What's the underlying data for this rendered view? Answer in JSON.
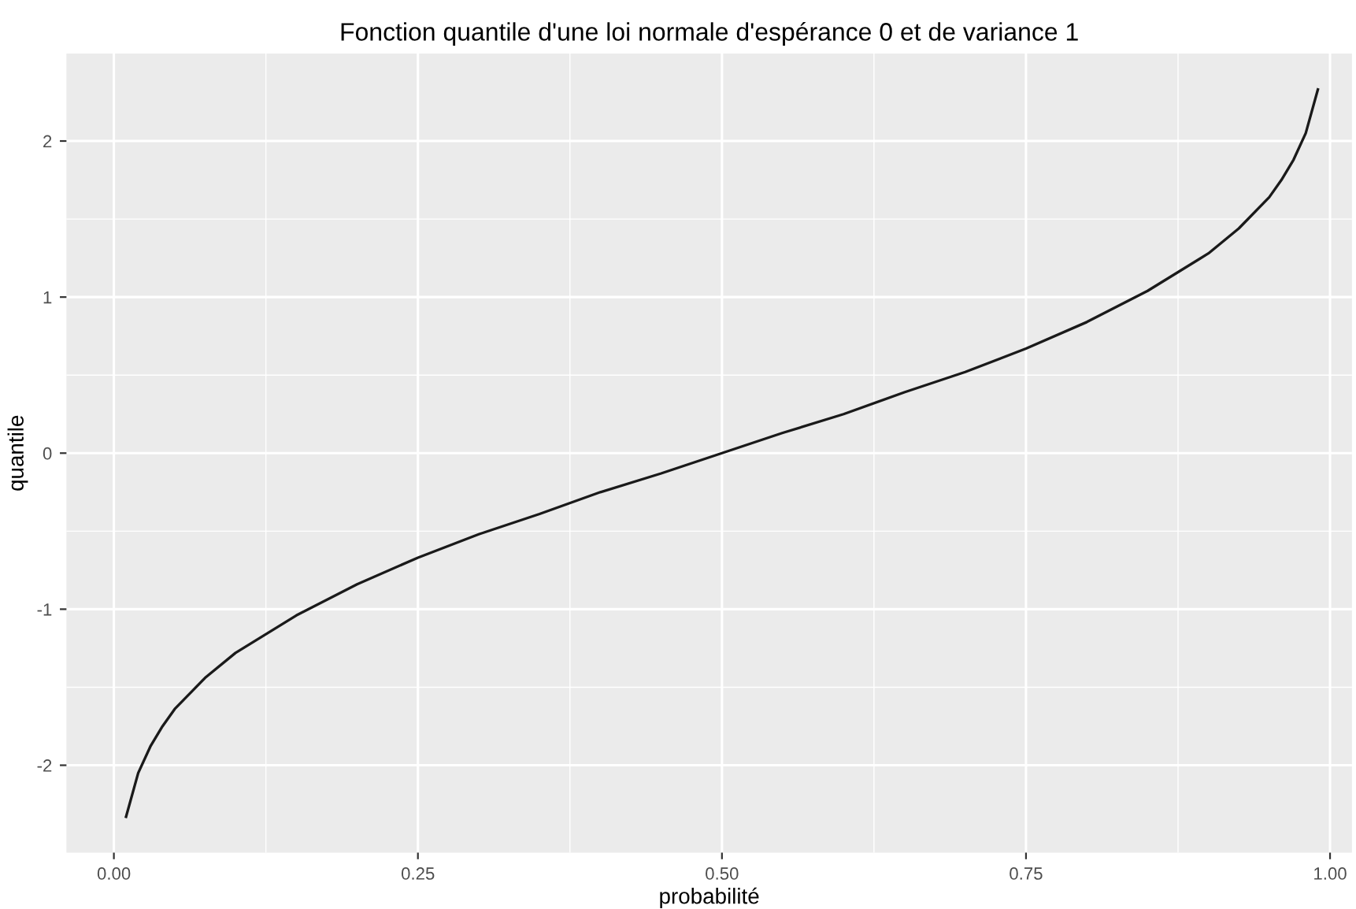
{
  "chart_data": {
    "type": "line",
    "title": "Fonction quantile d'une loi normale d'espérance 0 et de variance 1",
    "xlabel": "probabilité",
    "ylabel": "quantile",
    "x": [
      0.01,
      0.02,
      0.03,
      0.04,
      0.05,
      0.075,
      0.1,
      0.15,
      0.2,
      0.25,
      0.3,
      0.35,
      0.4,
      0.45,
      0.5,
      0.55,
      0.6,
      0.65,
      0.7,
      0.75,
      0.8,
      0.85,
      0.9,
      0.925,
      0.95,
      0.96,
      0.97,
      0.98,
      0.99
    ],
    "series": [
      {
        "color": "#1a1a1a",
        "values": [
          -2.33,
          -2.05,
          -1.88,
          -1.75,
          -1.64,
          -1.44,
          -1.28,
          -1.04,
          -0.84,
          -0.67,
          -0.52,
          -0.39,
          -0.25,
          -0.13,
          0.0,
          0.13,
          0.25,
          0.39,
          0.52,
          0.67,
          0.84,
          1.04,
          1.28,
          1.44,
          1.64,
          1.75,
          1.88,
          2.05,
          2.33
        ]
      }
    ],
    "xlim": [
      -0.039,
      1.018
    ],
    "ylim": [
      -2.56,
      2.56
    ],
    "xticks": [
      {
        "value": 0,
        "label": "0.00"
      },
      {
        "value": 0.25,
        "label": "0.25"
      },
      {
        "value": 0.5,
        "label": "0.50"
      },
      {
        "value": 0.75,
        "label": "0.75"
      },
      {
        "value": 1,
        "label": "1.00"
      }
    ],
    "yticks": [
      -2,
      -1,
      0,
      1,
      2
    ],
    "grid": true,
    "legend": false,
    "marker": "none",
    "line_style": "solid"
  }
}
